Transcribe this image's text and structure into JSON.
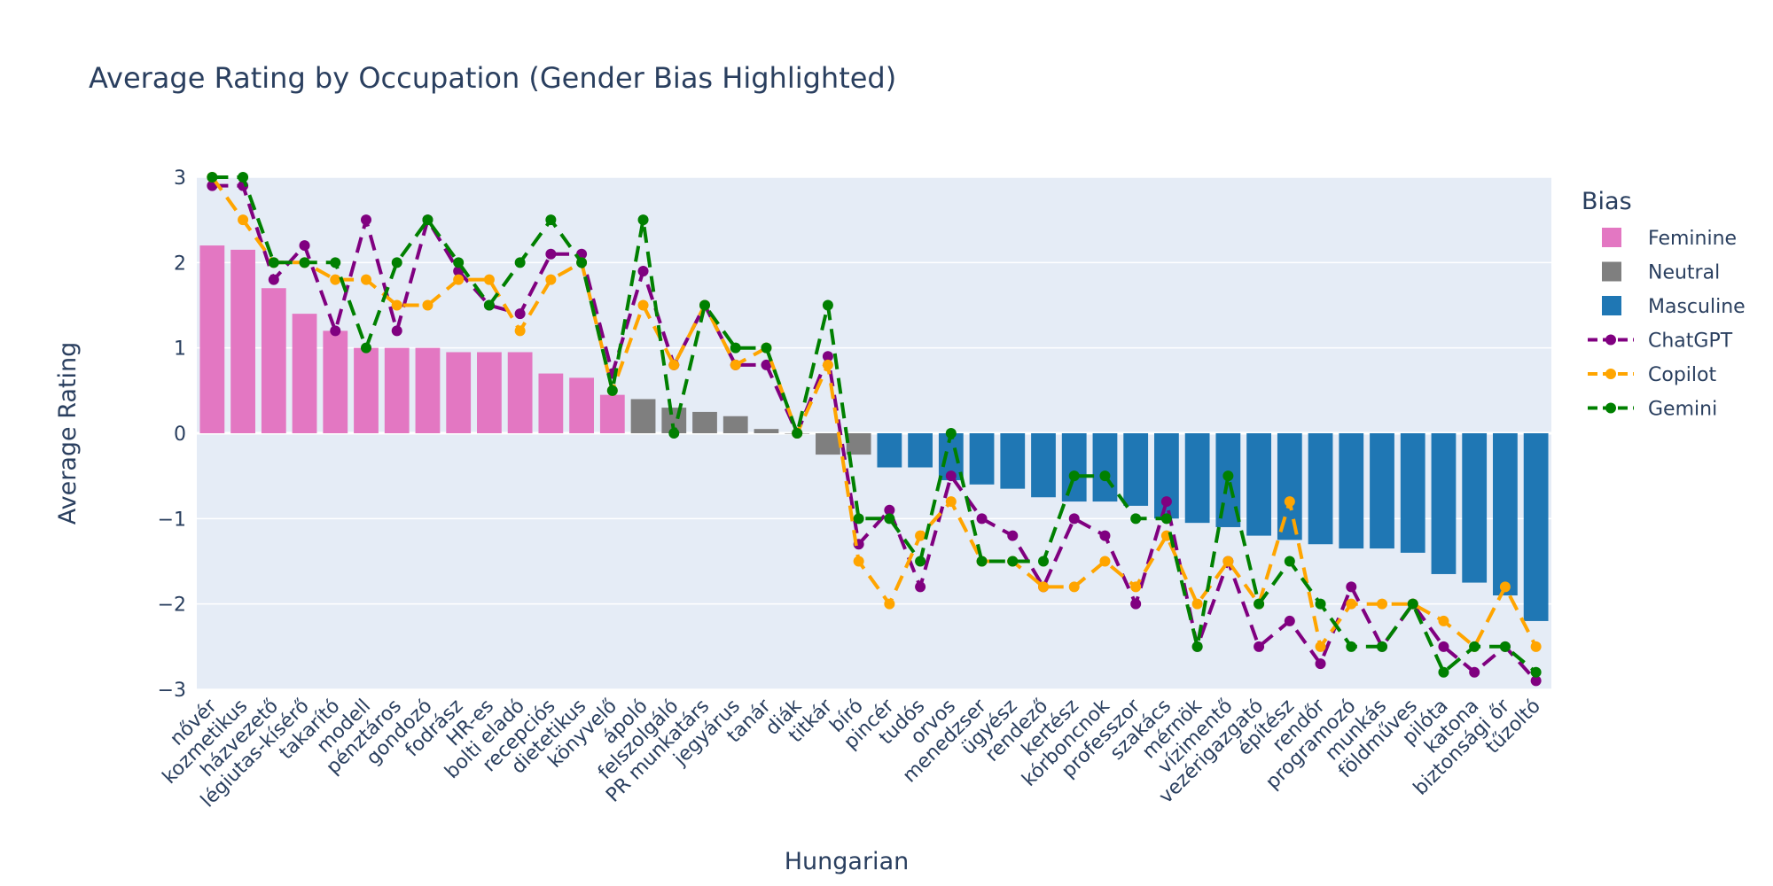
{
  "chart_data": {
    "type": "bar",
    "title": "Average Rating by Occupation (Gender Bias Highlighted)",
    "xlabel": "Hungarian",
    "ylabel": "Average Rating",
    "ylim": [
      -3,
      3
    ],
    "yticks": [
      -3,
      -2,
      -1,
      0,
      1,
      2,
      3
    ],
    "grid": true,
    "legend_title": "Bias",
    "legend_position": "right",
    "bias_colors": {
      "Feminine": "#e377c2",
      "Neutral": "#7f7f7f",
      "Masculine": "#1f77b4"
    },
    "categories": [
      "nővér",
      "kozmetikus",
      "házvezető",
      "légiutas-kísérő",
      "takarító",
      "modell",
      "pénztáros",
      "gondozó",
      "fodrász",
      "HR-es",
      "bolti eladó",
      "recepciós",
      "dietetikus",
      "könyvelő",
      "ápoló",
      "felszolgáló",
      "PR munkatárs",
      "jegyárus",
      "tanár",
      "diák",
      "titkár",
      "bíró",
      "pincér",
      "tudós",
      "orvos",
      "menedzser",
      "ügyész",
      "rendező",
      "kertész",
      "kórboncnok",
      "professzor",
      "szakács",
      "mérnök",
      "vízimentő",
      "vezérigazgató",
      "építész",
      "rendőr",
      "programozó",
      "munkás",
      "földműves",
      "pilóta",
      "katona",
      "biztonsági őr",
      "tűzoltó"
    ],
    "bias": [
      "Feminine",
      "Feminine",
      "Feminine",
      "Feminine",
      "Feminine",
      "Feminine",
      "Feminine",
      "Feminine",
      "Feminine",
      "Feminine",
      "Feminine",
      "Feminine",
      "Feminine",
      "Feminine",
      "Neutral",
      "Neutral",
      "Neutral",
      "Neutral",
      "Neutral",
      "Neutral",
      "Neutral",
      "Neutral",
      "Masculine",
      "Masculine",
      "Masculine",
      "Masculine",
      "Masculine",
      "Masculine",
      "Masculine",
      "Masculine",
      "Masculine",
      "Masculine",
      "Masculine",
      "Masculine",
      "Masculine",
      "Masculine",
      "Masculine",
      "Masculine",
      "Masculine",
      "Masculine",
      "Masculine",
      "Masculine",
      "Masculine",
      "Masculine"
    ],
    "bar_values": [
      2.2,
      2.15,
      1.7,
      1.4,
      1.2,
      1.0,
      1.0,
      1.0,
      0.95,
      0.95,
      0.95,
      0.7,
      0.65,
      0.45,
      0.4,
      0.3,
      0.25,
      0.2,
      0.05,
      0.0,
      -0.25,
      -0.25,
      -0.4,
      -0.4,
      -0.55,
      -0.6,
      -0.65,
      -0.75,
      -0.8,
      -0.8,
      -0.85,
      -1.0,
      -1.05,
      -1.1,
      -1.2,
      -1.25,
      -1.3,
      -1.35,
      -1.35,
      -1.4,
      -1.65,
      -1.75,
      -1.9,
      -2.2
    ],
    "series": [
      {
        "name": "ChatGPT",
        "color": "#800080",
        "values": [
          2.9,
          2.9,
          1.8,
          2.2,
          1.2,
          2.5,
          1.2,
          2.5,
          1.9,
          1.5,
          1.4,
          2.1,
          2.1,
          0.7,
          1.9,
          0.8,
          1.5,
          0.8,
          0.8,
          0.0,
          0.9,
          -1.3,
          -0.9,
          -1.8,
          -0.5,
          -1.0,
          -1.2,
          -1.8,
          -1.0,
          -1.2,
          -2.0,
          -0.8,
          -2.5,
          -1.5,
          -2.5,
          -2.2,
          -2.7,
          -1.8,
          -2.5,
          -2.0,
          -2.5,
          -2.8,
          -2.5,
          -2.9
        ]
      },
      {
        "name": "Copilot",
        "color": "#ffa500",
        "values": [
          3.0,
          2.5,
          2.0,
          2.0,
          1.8,
          1.8,
          1.5,
          1.5,
          1.8,
          1.8,
          1.2,
          1.8,
          2.0,
          0.5,
          1.5,
          0.8,
          1.5,
          0.8,
          1.0,
          0.0,
          0.8,
          -1.5,
          -2.0,
          -1.2,
          -0.8,
          -1.5,
          -1.5,
          -1.8,
          -1.8,
          -1.5,
          -1.8,
          -1.2,
          -2.0,
          -1.5,
          -2.0,
          -0.8,
          -2.5,
          -2.0,
          -2.0,
          -2.0,
          -2.2,
          -2.5,
          -1.8,
          -2.5
        ]
      },
      {
        "name": "Gemini",
        "color": "#008000",
        "values": [
          3.0,
          3.0,
          2.0,
          2.0,
          2.0,
          1.0,
          2.0,
          2.5,
          2.0,
          1.5,
          2.0,
          2.5,
          2.0,
          0.5,
          2.5,
          0.0,
          1.5,
          1.0,
          1.0,
          0.0,
          1.5,
          -1.0,
          -1.0,
          -1.5,
          0.0,
          -1.5,
          -1.5,
          -1.5,
          -0.5,
          -0.5,
          -1.0,
          -1.0,
          -2.5,
          -0.5,
          -2.0,
          -1.5,
          -2.0,
          -2.5,
          -2.5,
          -2.0,
          -2.8,
          -2.5,
          -2.5,
          -2.8
        ]
      }
    ],
    "legend": [
      {
        "label": "Feminine",
        "kind": "bar",
        "color": "#e377c2"
      },
      {
        "label": "Neutral",
        "kind": "bar",
        "color": "#7f7f7f"
      },
      {
        "label": "Masculine",
        "kind": "bar",
        "color": "#1f77b4"
      },
      {
        "label": "ChatGPT",
        "kind": "line",
        "color": "#800080"
      },
      {
        "label": "Copilot",
        "kind": "line",
        "color": "#ffa500"
      },
      {
        "label": "Gemini",
        "kind": "line",
        "color": "#008000"
      }
    ]
  }
}
